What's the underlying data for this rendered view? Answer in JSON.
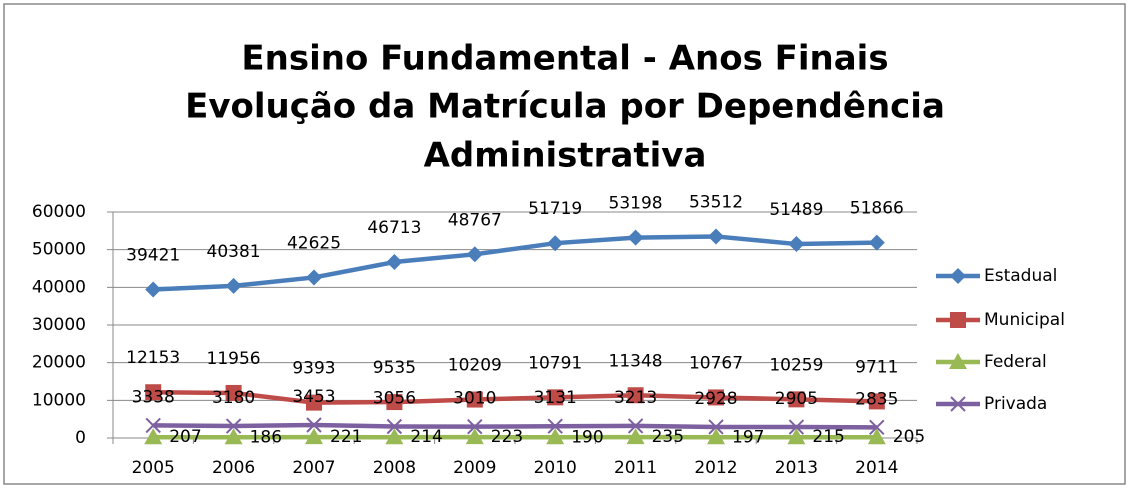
{
  "chart_data": {
    "type": "line",
    "title": [
      "Ensino Fundamental - Anos Finais",
      "Evolução da Matrícula por  Dependência",
      "Administrativa"
    ],
    "categories": [
      "2005",
      "2006",
      "2007",
      "2008",
      "2009",
      "2010",
      "2011",
      "2012",
      "2013",
      "2014"
    ],
    "series": [
      {
        "name": "Estadual",
        "color": "#4a7ebb",
        "marker": "diamond",
        "values": [
          39421,
          40381,
          42625,
          46713,
          48767,
          51719,
          53198,
          53512,
          51489,
          51866
        ]
      },
      {
        "name": "Municipal",
        "color": "#be4b48",
        "marker": "square",
        "values": [
          12153,
          11956,
          9393,
          9535,
          10209,
          10791,
          11348,
          10767,
          10259,
          9711
        ]
      },
      {
        "name": "Federal",
        "color": "#98b954",
        "marker": "triangle",
        "values": [
          207,
          186,
          221,
          214,
          223,
          190,
          235,
          197,
          215,
          205
        ]
      },
      {
        "name": "Privada",
        "color": "#7d60a0",
        "marker": "x",
        "values": [
          3338,
          3180,
          3453,
          3056,
          3010,
          3131,
          3213,
          2928,
          2905,
          2835
        ]
      }
    ],
    "ylim": [
      0,
      60000
    ],
    "yticks": [
      0,
      10000,
      20000,
      30000,
      40000,
      50000,
      60000
    ],
    "grid": true,
    "legend": "right"
  }
}
